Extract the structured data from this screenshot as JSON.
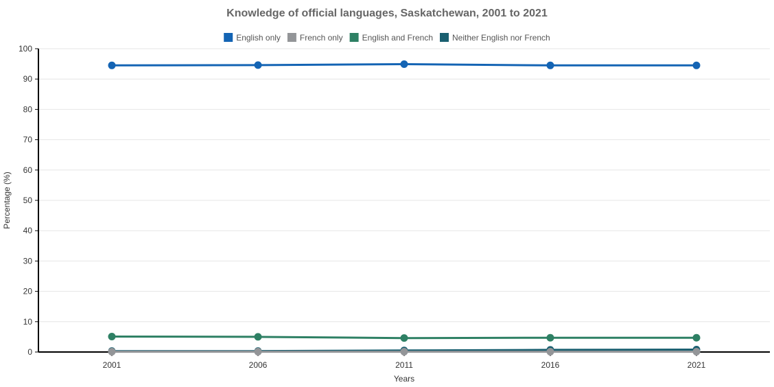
{
  "chart_data": {
    "type": "line",
    "title": "Knowledge of official languages, Saskatchewan, 2001 to 2021",
    "xlabel": "Years",
    "ylabel": "Percentage (%)",
    "categories": [
      "2001",
      "2006",
      "2011",
      "2016",
      "2021"
    ],
    "ylim": [
      0,
      100
    ],
    "yticks": [
      0,
      10,
      20,
      30,
      40,
      50,
      60,
      70,
      80,
      90,
      100
    ],
    "grid": true,
    "legend_position": "top-center",
    "series": [
      {
        "name": "English only",
        "color": "#1464b4",
        "values": [
          94.5,
          94.6,
          94.9,
          94.5,
          94.5
        ]
      },
      {
        "name": "French only",
        "color": "#939598",
        "values": [
          0.1,
          0.1,
          0.1,
          0.1,
          0.1
        ]
      },
      {
        "name": "English and French",
        "color": "#2e8064",
        "values": [
          5.1,
          5.0,
          4.6,
          4.7,
          4.7
        ]
      },
      {
        "name": "Neither English nor French",
        "color": "#1a5f70",
        "values": [
          0.3,
          0.3,
          0.5,
          0.7,
          0.8
        ]
      }
    ]
  }
}
